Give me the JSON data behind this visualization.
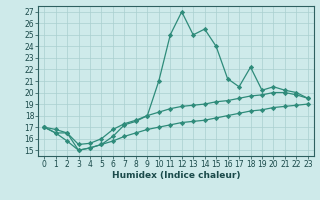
{
  "title": "",
  "xlabel": "Humidex (Indice chaleur)",
  "ylabel": "",
  "x_values": [
    0,
    1,
    2,
    3,
    4,
    5,
    6,
    7,
    8,
    9,
    10,
    11,
    12,
    13,
    14,
    15,
    16,
    17,
    18,
    19,
    20,
    21,
    22,
    23
  ],
  "line1": [
    17.0,
    16.5,
    16.5,
    15.0,
    15.2,
    15.5,
    16.2,
    17.2,
    17.5,
    18.0,
    21.0,
    25.0,
    27.0,
    25.0,
    25.5,
    24.0,
    21.2,
    20.5,
    22.2,
    20.2,
    20.5,
    20.2,
    20.0,
    19.5
  ],
  "line2": [
    17.0,
    16.8,
    16.5,
    15.5,
    15.6,
    16.0,
    16.8,
    17.3,
    17.6,
    18.0,
    18.3,
    18.6,
    18.8,
    18.9,
    19.0,
    19.2,
    19.3,
    19.5,
    19.7,
    19.8,
    20.0,
    20.0,
    19.8,
    19.5
  ],
  "line3": [
    17.0,
    16.5,
    15.8,
    15.0,
    15.2,
    15.5,
    15.8,
    16.2,
    16.5,
    16.8,
    17.0,
    17.2,
    17.4,
    17.5,
    17.6,
    17.8,
    18.0,
    18.2,
    18.4,
    18.5,
    18.7,
    18.8,
    18.9,
    19.0
  ],
  "line_color": "#2e8b7a",
  "bg_color": "#ceeaea",
  "grid_color": "#aacfcf",
  "ylim": [
    14.5,
    27.5
  ],
  "xlim": [
    -0.5,
    23.5
  ],
  "yticks": [
    15,
    16,
    17,
    18,
    19,
    20,
    21,
    22,
    23,
    24,
    25,
    26,
    27
  ],
  "xticks": [
    0,
    1,
    2,
    3,
    4,
    5,
    6,
    7,
    8,
    9,
    10,
    11,
    12,
    13,
    14,
    15,
    16,
    17,
    18,
    19,
    20,
    21,
    22,
    23
  ],
  "tick_fontsize": 5.5,
  "xlabel_fontsize": 6.5
}
